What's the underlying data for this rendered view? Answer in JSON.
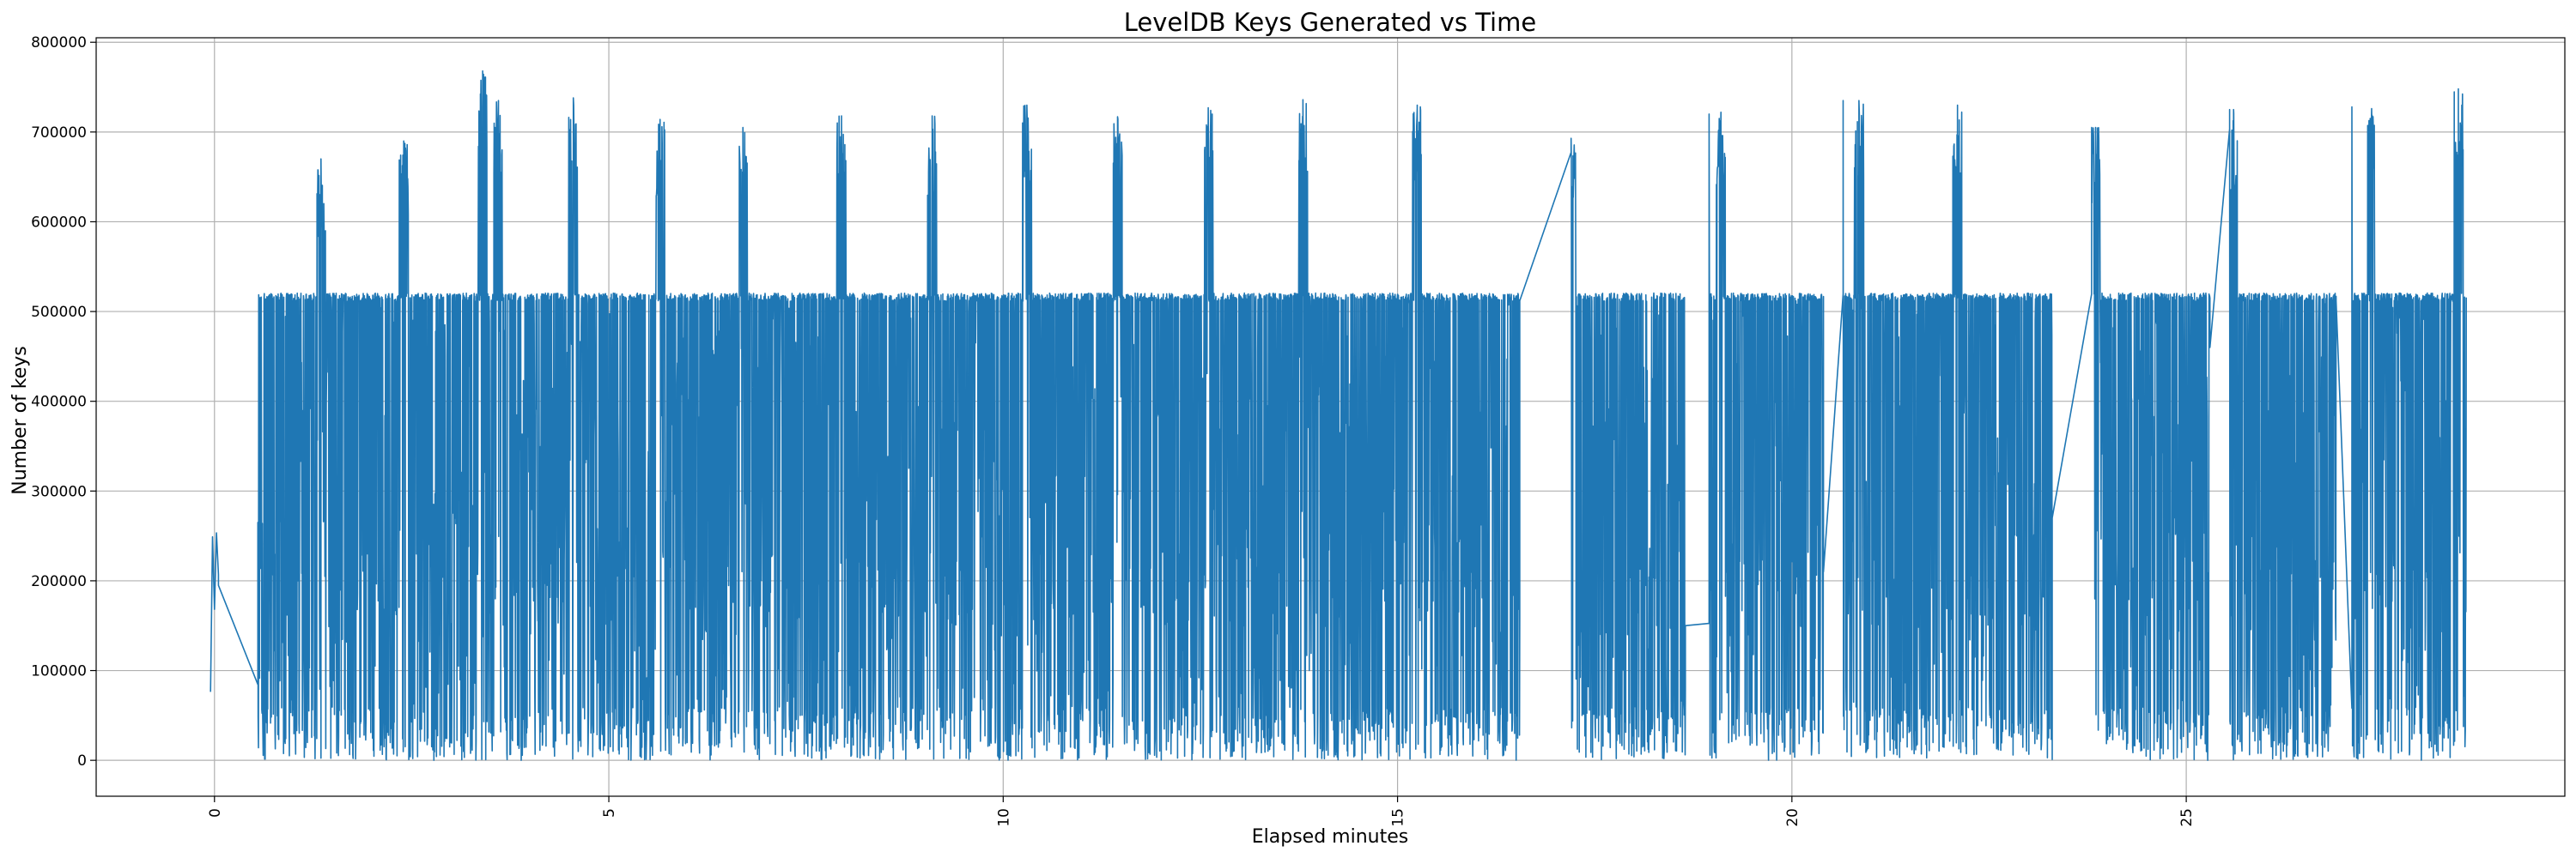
{
  "chart_data": {
    "type": "line",
    "title": "LevelDB Keys Generated vs Time",
    "xlabel": "Elapsed minutes",
    "ylabel": "Number of keys",
    "xlim": [
      -1.5,
      29.8
    ],
    "ylim": [
      -40000,
      805000
    ],
    "grid": true,
    "line_color": "#1f77b4",
    "xticks": [
      0,
      5,
      10,
      15,
      20,
      25
    ],
    "xtick_labels": [
      "0",
      "5",
      "10",
      "15",
      "20",
      "25"
    ],
    "yticks": [
      0,
      100000,
      200000,
      300000,
      400000,
      500000,
      600000,
      700000,
      800000
    ],
    "ytick_labels": [
      "0",
      "100000",
      "200000",
      "300000",
      "400000",
      "500000",
      "600000",
      "700000",
      "800000"
    ],
    "series": [
      {
        "name": "keys",
        "description": "Sampled approximation of a dense time series: plateau near 515000 keys with frequent drops toward 0 and periodic spikes to ~700000-770000; gaps with straight connecting lines.",
        "baseline": 516000,
        "segments": [
          {
            "start": -0.05,
            "end": 0.05,
            "density": 40,
            "baseline": 250000
          },
          {
            "start": 0.55,
            "end": 4.0,
            "density": 280
          },
          {
            "start": 4.0,
            "end": 8.0,
            "density": 260
          },
          {
            "start": 8.0,
            "end": 12.0,
            "density": 260
          },
          {
            "start": 12.0,
            "end": 16.55,
            "density": 260
          },
          {
            "start": 17.2,
            "end": 18.65,
            "density": 250
          },
          {
            "start": 18.95,
            "end": 20.4,
            "density": 250
          },
          {
            "start": 20.65,
            "end": 23.3,
            "density": 250
          },
          {
            "start": 23.8,
            "end": 25.3,
            "density": 250
          },
          {
            "start": 25.55,
            "end": 26.9,
            "density": 250
          },
          {
            "start": 27.1,
            "end": 28.55,
            "density": 250
          }
        ],
        "connectors": [
          {
            "x": [
              0.05,
              0.55
            ],
            "y": [
              195000,
              265000
            ]
          },
          {
            "x": [
              16.55,
              17.2
            ],
            "y": [
              512000,
              693000
            ]
          },
          {
            "x": [
              18.65,
              18.95
            ],
            "y": [
              150000,
              720000
            ]
          },
          {
            "x": [
              20.4,
              20.65
            ],
            "y": [
              210000,
              735000
            ]
          },
          {
            "x": [
              21.95,
              22.1
            ],
            "y": [
              510000,
              730000
            ]
          },
          {
            "x": [
              23.3,
              23.8
            ],
            "y": [
              270000,
              705000
            ]
          },
          {
            "x": [
              25.3,
              25.55
            ],
            "y": [
              460000,
              725000
            ]
          },
          {
            "x": [
              26.9,
              27.1
            ],
            "y": [
              512000,
              728000
            ]
          }
        ],
        "spikes": [
          {
            "x": 1.35,
            "peak": 670000
          },
          {
            "x": 2.4,
            "peak": 690000
          },
          {
            "x": 3.4,
            "peak": 768000
          },
          {
            "x": 3.6,
            "peak": 735000
          },
          {
            "x": 4.55,
            "peak": 738000
          },
          {
            "x": 5.65,
            "peak": 714000
          },
          {
            "x": 6.7,
            "peak": 705000
          },
          {
            "x": 7.95,
            "peak": 718000
          },
          {
            "x": 9.1,
            "peak": 718000
          },
          {
            "x": 10.3,
            "peak": 730000
          },
          {
            "x": 11.45,
            "peak": 717000
          },
          {
            "x": 12.6,
            "peak": 727000
          },
          {
            "x": 13.8,
            "peak": 736000
          },
          {
            "x": 15.25,
            "peak": 730000
          },
          {
            "x": 17.2,
            "peak": 693000
          },
          {
            "x": 19.1,
            "peak": 722000
          },
          {
            "x": 20.85,
            "peak": 735000
          },
          {
            "x": 22.1,
            "peak": 730000
          },
          {
            "x": 23.85,
            "peak": 705000
          },
          {
            "x": 25.6,
            "peak": 725000
          },
          {
            "x": 27.35,
            "peak": 726000
          },
          {
            "x": 28.45,
            "peak": 748000
          }
        ],
        "end_value": 512000
      }
    ]
  }
}
